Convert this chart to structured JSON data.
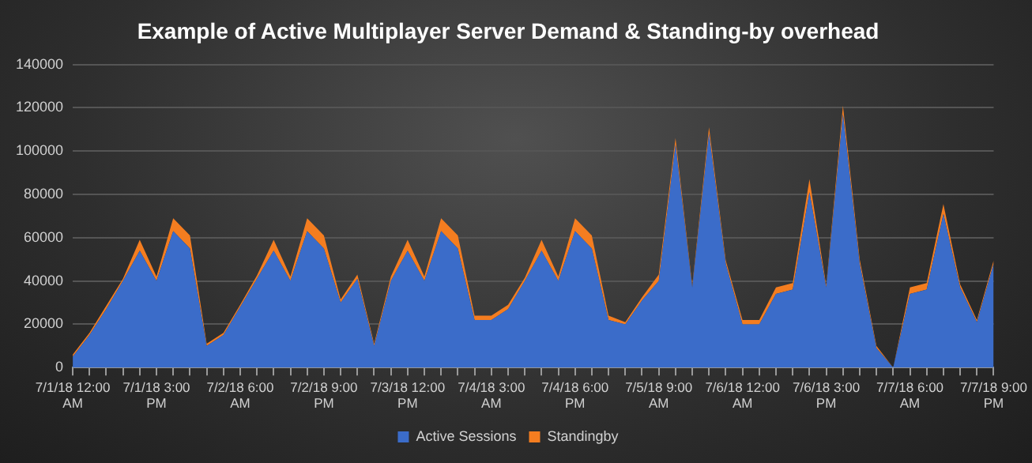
{
  "chart_data": {
    "type": "area",
    "title": "Example of Active Multiplayer Server Demand & Standing-by overhead",
    "stacked": true,
    "categories": [
      "7/1/18 12:00 AM",
      null,
      null,
      null,
      null,
      "7/1/18 3:00 PM",
      null,
      null,
      null,
      null,
      "7/2/18 6:00 AM",
      null,
      null,
      null,
      null,
      "7/2/18 9:00 PM",
      null,
      null,
      null,
      null,
      "7/3/18 12:00 PM",
      null,
      null,
      null,
      null,
      "7/4/18 3:00 AM",
      null,
      null,
      null,
      null,
      "7/4/18 6:00 PM",
      null,
      null,
      null,
      null,
      "7/5/18 9:00 AM",
      null,
      null,
      null,
      null,
      "7/6/18 12:00 AM",
      null,
      null,
      null,
      null,
      "7/6/18 3:00 PM",
      null,
      null,
      null,
      null,
      "7/7/18 6:00 AM",
      null,
      null,
      null,
      null,
      "7/7/18 9:00 PM"
    ],
    "series": [
      {
        "name": "Active Sessions",
        "color": "#3b6cc9",
        "values": [
          5000,
          15000,
          27000,
          40000,
          54000,
          40000,
          63000,
          55000,
          10000,
          15000,
          28000,
          41000,
          54000,
          40000,
          63000,
          55000,
          30000,
          41000,
          10000,
          40000,
          54000,
          40000,
          63000,
          55000,
          22000,
          22000,
          27000,
          40000,
          54000,
          40000,
          63000,
          55000,
          22000,
          20000,
          31000,
          40000,
          103000,
          37000,
          108000,
          48000,
          20000,
          20000,
          34000,
          36000,
          81000,
          37000,
          117000,
          48000,
          9000,
          0,
          34000,
          36000,
          71000,
          37000,
          21000,
          48000
        ]
      },
      {
        "name": "Standingby",
        "color": "#f47d20",
        "values": [
          1000,
          1000,
          1500,
          1000,
          5000,
          2000,
          6000,
          6000,
          1000,
          1000,
          1000,
          1500,
          5000,
          2000,
          6000,
          6000,
          1500,
          2000,
          1000,
          2000,
          5000,
          2000,
          6000,
          6000,
          2000,
          2000,
          2000,
          1500,
          5000,
          2000,
          6000,
          6000,
          2000,
          1000,
          1500,
          3000,
          3000,
          1000,
          3000,
          1500,
          2000,
          2000,
          3000,
          3000,
          6000,
          1000,
          4000,
          2000,
          1000,
          0,
          3000,
          3000,
          4500,
          1500,
          1000,
          1500
        ]
      }
    ],
    "ylim": [
      0,
      140000
    ],
    "yticks": [
      0,
      20000,
      40000,
      60000,
      80000,
      100000,
      120000,
      140000
    ],
    "grid": "y",
    "legend": "bottom"
  }
}
